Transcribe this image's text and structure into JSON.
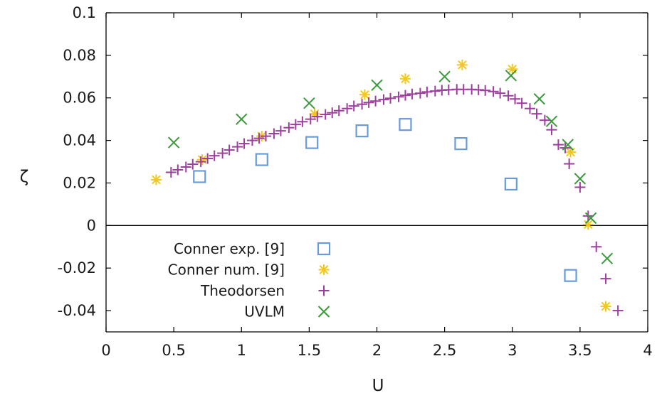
{
  "chart_data": {
    "type": "scatter",
    "xlabel": "U",
    "ylabel": "ζ",
    "xlim": [
      0,
      4
    ],
    "ylim": [
      -0.05,
      0.1
    ],
    "x_ticks": [
      "0",
      "0.5",
      "1",
      "1.5",
      "2",
      "2.5",
      "3",
      "3.5",
      "4"
    ],
    "y_ticks": [
      "-0.04",
      "-0.02",
      "0",
      "0.02",
      "0.04",
      "0.06",
      "0.08",
      "0.1"
    ],
    "grid": false,
    "zero_line": true,
    "legend_position": "bottom-left",
    "series": [
      {
        "name": "Conner exp. [9]",
        "marker": "open-square",
        "color": "#6a9bd8",
        "points": [
          [
            0.69,
            0.023
          ],
          [
            1.15,
            0.031
          ],
          [
            1.52,
            0.039
          ],
          [
            1.89,
            0.0445
          ],
          [
            2.21,
            0.0475
          ],
          [
            2.62,
            0.0385
          ],
          [
            2.99,
            0.0195
          ],
          [
            3.43,
            -0.0235
          ]
        ]
      },
      {
        "name": "Conner num. [9]",
        "marker": "asterisk",
        "color": "#f2c81e",
        "points": [
          [
            0.37,
            0.0215
          ],
          [
            0.71,
            0.031
          ],
          [
            1.15,
            0.042
          ],
          [
            1.54,
            0.0525
          ],
          [
            1.91,
            0.0615
          ],
          [
            2.21,
            0.069
          ],
          [
            2.63,
            0.0755
          ],
          [
            3.0,
            0.0735
          ],
          [
            3.43,
            0.0345
          ],
          [
            3.56,
            0.0005
          ],
          [
            3.69,
            -0.038
          ]
        ]
      },
      {
        "name": "Theodorsen",
        "marker": "plus",
        "color": "#9c3f9c",
        "points": [
          [
            0.48,
            0.025
          ],
          [
            0.53,
            0.0262
          ],
          [
            0.59,
            0.0275
          ],
          [
            0.64,
            0.0288
          ],
          [
            0.7,
            0.03
          ],
          [
            0.75,
            0.0315
          ],
          [
            0.8,
            0.0328
          ],
          [
            0.86,
            0.034
          ],
          [
            0.91,
            0.0355
          ],
          [
            0.97,
            0.037
          ],
          [
            1.02,
            0.0385
          ],
          [
            1.08,
            0.04
          ],
          [
            1.13,
            0.041
          ],
          [
            1.18,
            0.042
          ],
          [
            1.24,
            0.0432
          ],
          [
            1.29,
            0.0445
          ],
          [
            1.35,
            0.046
          ],
          [
            1.4,
            0.0475
          ],
          [
            1.45,
            0.0488
          ],
          [
            1.51,
            0.05
          ],
          [
            1.56,
            0.0512
          ],
          [
            1.62,
            0.0522
          ],
          [
            1.67,
            0.053
          ],
          [
            1.72,
            0.054
          ],
          [
            1.78,
            0.055
          ],
          [
            1.83,
            0.0562
          ],
          [
            1.89,
            0.057
          ],
          [
            1.94,
            0.0578
          ],
          [
            1.99,
            0.0585
          ],
          [
            2.05,
            0.0592
          ],
          [
            2.1,
            0.0598
          ],
          [
            2.16,
            0.0605
          ],
          [
            2.21,
            0.0612
          ],
          [
            2.26,
            0.0618
          ],
          [
            2.32,
            0.0622
          ],
          [
            2.37,
            0.0628
          ],
          [
            2.43,
            0.0632
          ],
          [
            2.48,
            0.0636
          ],
          [
            2.53,
            0.0638
          ],
          [
            2.59,
            0.064
          ],
          [
            2.64,
            0.064
          ],
          [
            2.7,
            0.064
          ],
          [
            2.75,
            0.0638
          ],
          [
            2.8,
            0.0635
          ],
          [
            2.86,
            0.063
          ],
          [
            2.91,
            0.0622
          ],
          [
            2.97,
            0.061
          ],
          [
            3.02,
            0.0595
          ],
          [
            3.07,
            0.0575
          ],
          [
            3.13,
            0.055
          ],
          [
            3.18,
            0.0525
          ],
          [
            3.24,
            0.0495
          ],
          [
            3.29,
            0.045
          ],
          [
            3.34,
            0.038
          ],
          [
            3.39,
            0.0365
          ],
          [
            3.42,
            0.029
          ],
          [
            3.5,
            0.018
          ],
          [
            3.56,
            0.0045
          ],
          [
            3.62,
            -0.01
          ],
          [
            3.69,
            -0.025
          ],
          [
            3.78,
            -0.04
          ]
        ]
      },
      {
        "name": "UVLM",
        "marker": "cross",
        "color": "#3a9a3a",
        "points": [
          [
            0.5,
            0.039
          ],
          [
            1.0,
            0.05
          ],
          [
            1.5,
            0.0575
          ],
          [
            2.0,
            0.066
          ],
          [
            2.5,
            0.07
          ],
          [
            2.99,
            0.0705
          ],
          [
            3.2,
            0.0595
          ],
          [
            3.29,
            0.049
          ],
          [
            3.41,
            0.038
          ],
          [
            3.5,
            0.022
          ],
          [
            3.58,
            0.0035
          ],
          [
            3.7,
            -0.0155
          ]
        ]
      }
    ]
  }
}
